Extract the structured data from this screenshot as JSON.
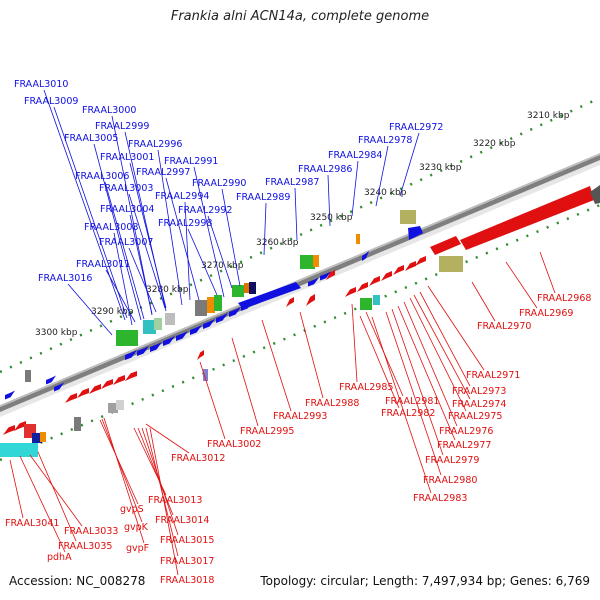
{
  "title": "Frankia alni ACN14a, complete genome",
  "footer": {
    "accession": "Accession: NC_008278",
    "topology": "Topology: circular; Length: 7,497,934 bp; Genes: 6,769"
  },
  "scale": {
    "label_color": "#222222",
    "ticks": [
      "3210 kbp",
      "3220 kbp",
      "3230 kbp",
      "3240 kbp",
      "3250 kbp",
      "3260 kbp",
      "3270 kbp",
      "3280 kbp",
      "3290 kbp",
      "3300 kbp"
    ]
  },
  "colors": {
    "forward": "#1010e0",
    "reverse": "#e01010",
    "backbone": "#808080",
    "tick": "#228b22"
  },
  "labels_forward": [
    "FRAAL3010",
    "FRAAL3009",
    "FRAAL3000",
    "FRAAL2999",
    "FRAAL3005",
    "FRAAL2996",
    "FRAAL3001",
    "FRAAL2991",
    "FRAAL3006",
    "FRAAL2997",
    "FRAAL3003",
    "FRAAL2990",
    "FRAAL2994",
    "FRAAL3004",
    "FRAAL2992",
    "FRAAL3008",
    "FRAAL2998",
    "FRAAL3007",
    "FRAAL3011",
    "FRAAL3016",
    "FRAAL2972",
    "FRAAL2978",
    "FRAAL2984",
    "FRAAL2986",
    "FRAAL2987",
    "FRAAL2989"
  ],
  "labels_reverse": [
    "FRAAL2968",
    "FRAAL2969",
    "FRAAL2970",
    "FRAAL2971",
    "FRAAL2973",
    "FRAAL2974",
    "FRAAL2975",
    "FRAAL2976",
    "FRAAL2977",
    "FRAAL2979",
    "FRAAL2980",
    "FRAAL2983",
    "FRAAL2985",
    "FRAAL2981",
    "FRAAL2982",
    "FRAAL2988",
    "FRAAL2993",
    "FRAAL2995",
    "FRAAL3002",
    "FRAAL3012",
    "FRAAL3013",
    "FRAAL3014",
    "FRAAL3015",
    "FRAAL3017",
    "FRAAL3018",
    "gvpS",
    "gvpK",
    "gvpF",
    "FRAAL3041",
    "FRAAL3033",
    "FRAAL3035",
    "pdhA"
  ]
}
